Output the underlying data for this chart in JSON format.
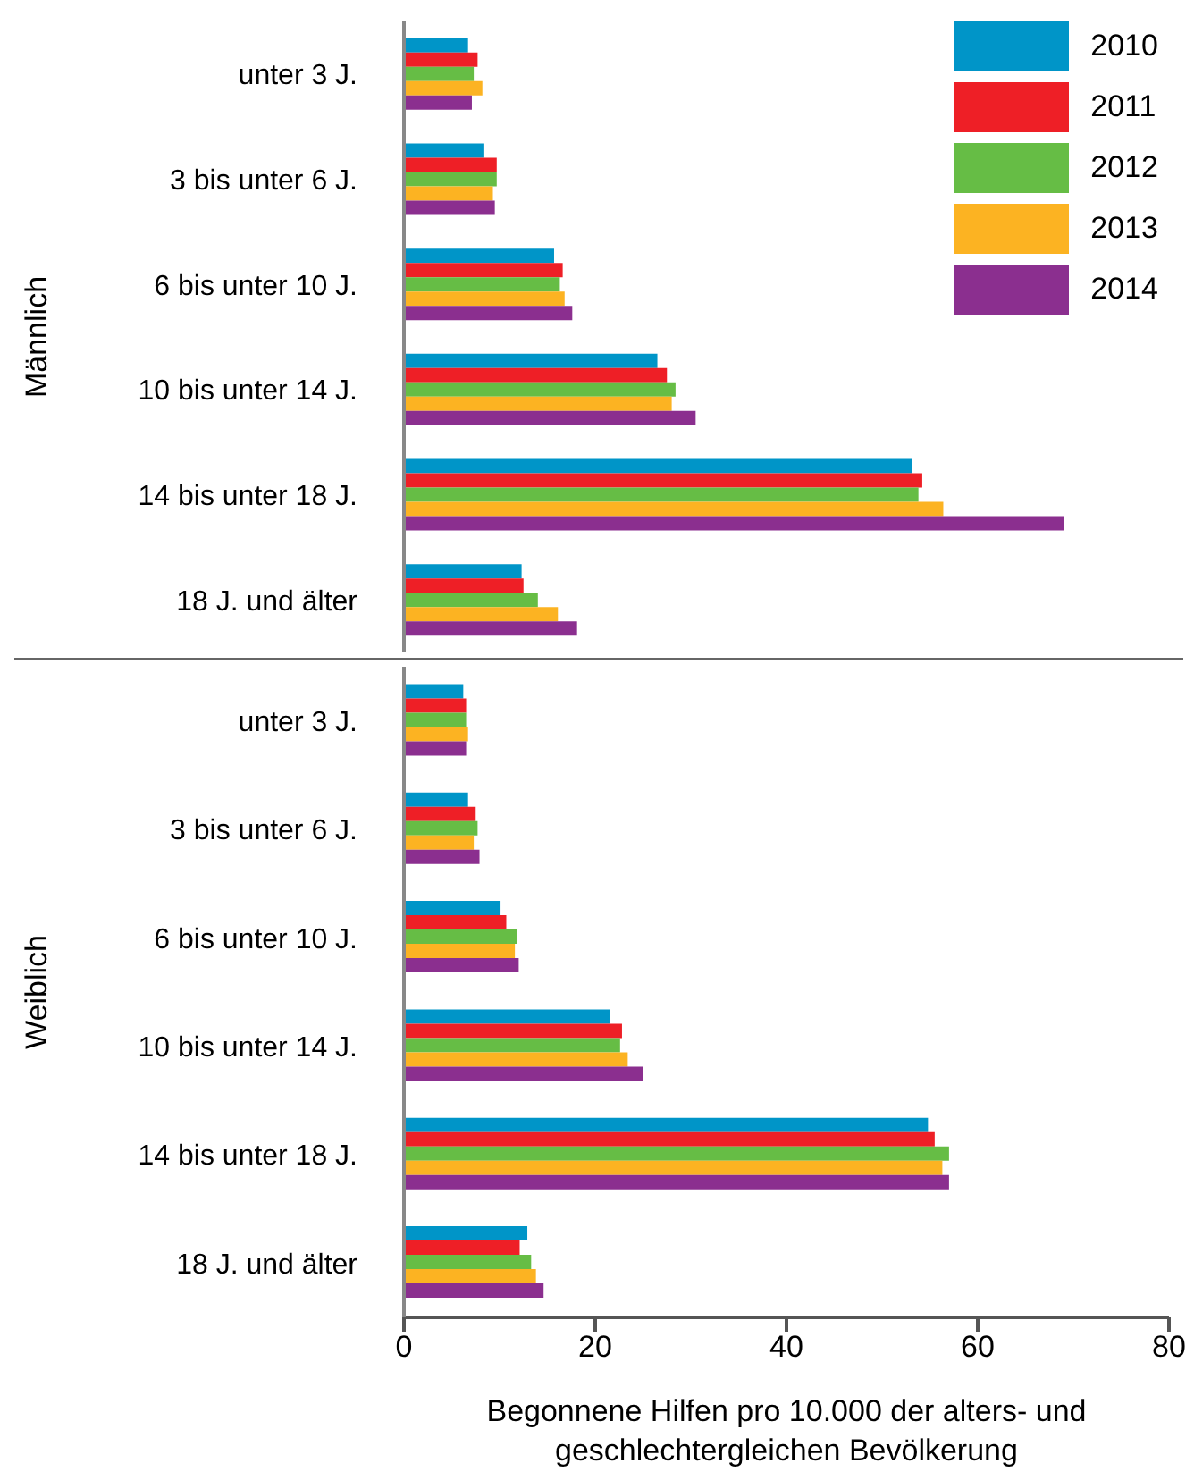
{
  "chart_data": [
    {
      "type": "bar",
      "orientation": "horizontal",
      "ylabel": "Männlich",
      "categories": [
        "unter 3 J.",
        "3 bis unter 6 J.",
        "6 bis unter 10 J.",
        "10 bis unter 14 J.",
        "14 bis unter 18 J.",
        "18 J. und älter"
      ],
      "xlim": [
        0,
        80
      ],
      "tick_labels": "y",
      "legend": "top right",
      "grid": false,
      "series": [
        {
          "name": "2010",
          "color": "#0095c8",
          "values": [
            6.7,
            8.4,
            15.7,
            26.5,
            53.1,
            12.3
          ]
        },
        {
          "name": "2011",
          "color": "#ee1f26",
          "values": [
            7.7,
            9.7,
            16.6,
            27.5,
            54.2,
            12.5
          ]
        },
        {
          "name": "2012",
          "color": "#66bd45",
          "values": [
            7.3,
            9.7,
            16.3,
            28.4,
            53.8,
            14.0
          ]
        },
        {
          "name": "2013",
          "color": "#fcb322",
          "values": [
            8.2,
            9.3,
            16.8,
            28.0,
            56.4,
            16.1
          ]
        },
        {
          "name": "2014",
          "color": "#8b2f8f",
          "values": [
            7.1,
            9.5,
            17.6,
            30.5,
            69.0,
            18.1
          ]
        }
      ]
    },
    {
      "type": "bar",
      "orientation": "horizontal",
      "ylabel": "Weiblich",
      "xlabel": "Begonnene Hilfen pro 10.000 der alters- und geschlechtergleichen Bevölkerung",
      "categories": [
        "unter 3 J.",
        "3 bis unter 6 J.",
        "6 bis unter 10 J.",
        "10 bis unter 14 J.",
        "14 bis unter 18 J.",
        "18 J. und älter"
      ],
      "xlim": [
        0,
        80
      ],
      "xticks": [
        0,
        20,
        40,
        60,
        80
      ],
      "grid": false,
      "series": [
        {
          "color": "#0095c8",
          "values": [
            6.2,
            6.7,
            10.1,
            21.5,
            54.8,
            12.9
          ]
        },
        {
          "color": "#ee1f26",
          "values": [
            6.5,
            7.5,
            10.7,
            22.8,
            55.5,
            12.1
          ]
        },
        {
          "color": "#66bd45",
          "values": [
            6.5,
            7.7,
            11.8,
            22.6,
            57.0,
            13.3
          ]
        },
        {
          "color": "#fcb322",
          "values": [
            6.7,
            7.3,
            11.6,
            23.4,
            56.3,
            13.8
          ]
        },
        {
          "color": "#8b2f8f",
          "values": [
            6.5,
            7.9,
            12.0,
            25.0,
            57.0,
            14.6
          ]
        }
      ]
    }
  ]
}
